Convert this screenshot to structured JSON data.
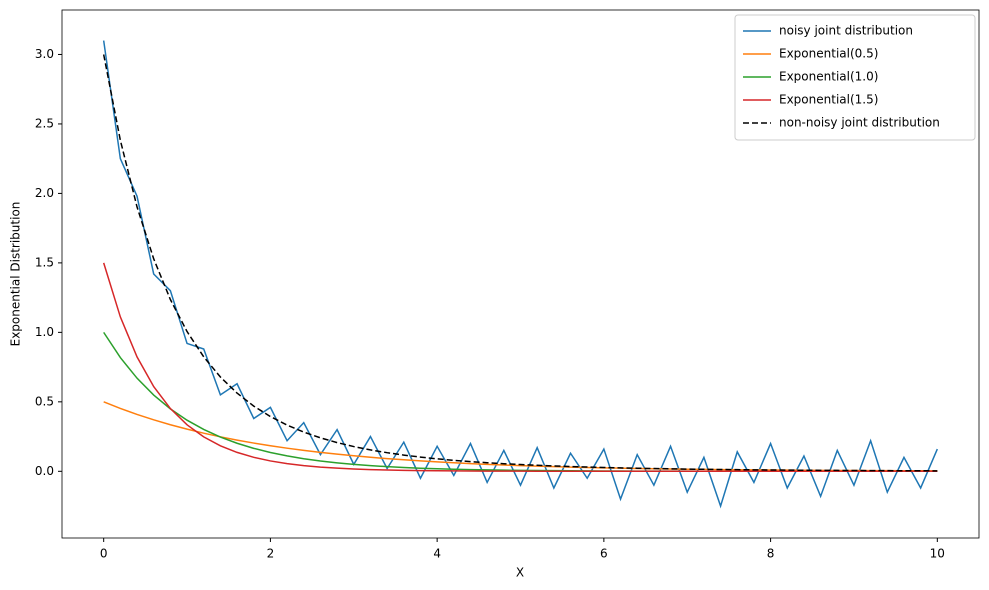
{
  "chart_data": {
    "type": "line",
    "xlabel": "X",
    "ylabel": "Exponential Distribution",
    "x": [
      0,
      0.2,
      0.4,
      0.6,
      0.8,
      1,
      1.2,
      1.4,
      1.6,
      1.8,
      2,
      2.2,
      2.4,
      2.6,
      2.8,
      3,
      3.2,
      3.4,
      3.6,
      3.8,
      4,
      4.2,
      4.4,
      4.6,
      4.8,
      5,
      5.2,
      5.4,
      5.6,
      5.8,
      6,
      6.2,
      6.4,
      6.6,
      6.8,
      7,
      7.2,
      7.4,
      7.6,
      7.8,
      8,
      8.2,
      8.4,
      8.6,
      8.8,
      9,
      9.2,
      9.4,
      9.6,
      9.8,
      10
    ],
    "series": [
      {
        "name": "noisy joint distribution",
        "color": "#1f77b4",
        "linestyle": "solid",
        "values": [
          3.1,
          2.25,
          1.98,
          1.42,
          1.3,
          0.92,
          0.88,
          0.55,
          0.63,
          0.38,
          0.46,
          0.22,
          0.35,
          0.12,
          0.3,
          0.05,
          0.25,
          0.02,
          0.21,
          -0.05,
          0.18,
          -0.03,
          0.2,
          -0.08,
          0.15,
          -0.1,
          0.17,
          -0.12,
          0.13,
          -0.05,
          0.16,
          -0.2,
          0.12,
          -0.1,
          0.18,
          -0.15,
          0.1,
          -0.25,
          0.14,
          -0.08,
          0.2,
          -0.12,
          0.11,
          -0.18,
          0.15,
          -0.1,
          0.22,
          -0.15,
          0.1,
          -0.12,
          0.16
        ]
      },
      {
        "name": "Exponential(0.5)",
        "color": "#ff7f0e",
        "linestyle": "solid",
        "values": [
          0.5,
          0.4524,
          0.4094,
          0.3704,
          0.3352,
          0.3033,
          0.2744,
          0.2483,
          0.2247,
          0.2033,
          0.1839,
          0.1664,
          0.1506,
          0.1363,
          0.1233,
          0.1116,
          0.1009,
          0.0914,
          0.0827,
          0.0748,
          0.0677,
          0.0612,
          0.0554,
          0.0501,
          0.0454,
          0.041,
          0.0372,
          0.0336,
          0.0304,
          0.0275,
          0.0249,
          0.0225,
          0.0204,
          0.0185,
          0.0167,
          0.0151,
          0.0137,
          0.0124,
          0.0112,
          0.0101,
          0.0092,
          0.0083,
          0.0075,
          0.0068,
          0.0061,
          0.0056,
          0.005,
          0.0045,
          0.0041,
          0.0037,
          0.0034
        ]
      },
      {
        "name": "Exponential(1.0)",
        "color": "#2ca02c",
        "linestyle": "solid",
        "values": [
          1,
          0.8187,
          0.6703,
          0.5488,
          0.4493,
          0.3679,
          0.3012,
          0.2466,
          0.2019,
          0.1653,
          0.1353,
          0.1108,
          0.0907,
          0.0743,
          0.0608,
          0.0498,
          0.0408,
          0.0334,
          0.0273,
          0.0224,
          0.0183,
          0.015,
          0.0123,
          0.0101,
          0.0082,
          0.0067,
          0.0055,
          0.0045,
          0.0037,
          0.003,
          0.0025,
          0.002,
          0.0017,
          0.0014,
          0.0011,
          0.0009,
          0.0007,
          0.0006,
          0.0005,
          0.0004,
          0.0003,
          0.0003,
          0.0002,
          0.0002,
          0.0002,
          0.0001,
          0.0001,
          0.0001,
          0.0001,
          0.0001,
          0
        ]
      },
      {
        "name": "Exponential(1.5)",
        "color": "#d62728",
        "linestyle": "solid",
        "values": [
          1.5,
          1.1112,
          0.8232,
          0.6099,
          0.4518,
          0.3347,
          0.248,
          0.1838,
          0.1361,
          0.1008,
          0.0747,
          0.0554,
          0.041,
          0.0303,
          0.0225,
          0.0167,
          0.0123,
          0.0092,
          0.0068,
          0.005,
          0.0037,
          0.0027,
          0.0021,
          0.0015,
          0.0011,
          0.0009,
          0.0006,
          0.0005,
          0.0003,
          0.0002,
          0.0002,
          0.0001,
          0.0001,
          0.0001,
          0.0001,
          0,
          0,
          0,
          0,
          0,
          0,
          0,
          0,
          0,
          0,
          0,
          0,
          0,
          0,
          0,
          0
        ]
      },
      {
        "name": "non-noisy joint distribution",
        "color": "#000000",
        "linestyle": "dashed",
        "values": [
          3,
          2.3823,
          1.9029,
          1.5291,
          1.2363,
          1.0059,
          0.8236,
          0.6787,
          0.5627,
          0.4694,
          0.3939,
          0.3326,
          0.2823,
          0.2409,
          0.2066,
          0.1781,
          0.154,
          0.134,
          0.1168,
          0.1022,
          0.0897,
          0.0789,
          0.0698,
          0.0617,
          0.0547,
          0.0486,
          0.0433,
          0.0386,
          0.0344,
          0.0307,
          0.0276,
          0.0246,
          0.0222,
          0.02,
          0.0179,
          0.016,
          0.0144,
          0.013,
          0.0117,
          0.0105,
          0.0095,
          0.0086,
          0.0077,
          0.007,
          0.0063,
          0.0057,
          0.0051,
          0.0046,
          0.0042,
          0.0038,
          0.0034
        ]
      }
    ],
    "xlim": [
      -0.5,
      10.5
    ],
    "xticks": [
      0,
      2,
      4,
      6,
      8,
      10
    ],
    "ylim": [
      -0.48,
      3.32
    ],
    "yticks": [
      {
        "value": 0,
        "label": "0.0"
      },
      {
        "value": 0.5,
        "label": "0.5"
      },
      {
        "value": 1,
        "label": "1.0"
      },
      {
        "value": 1.5,
        "label": "1.5"
      },
      {
        "value": 2,
        "label": "2.0"
      },
      {
        "value": 2.5,
        "label": "2.5"
      },
      {
        "value": 3,
        "label": "3.0"
      }
    ],
    "grid": false,
    "legend": "upper right"
  }
}
